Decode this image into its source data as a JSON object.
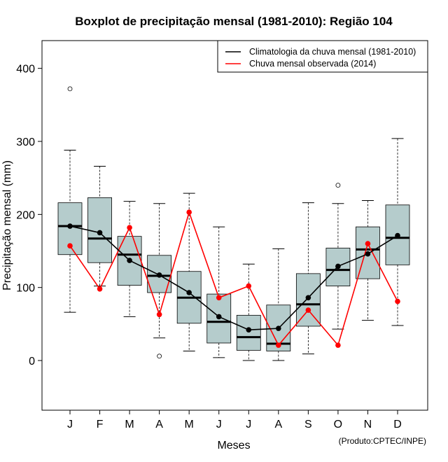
{
  "chart_data": {
    "type": "boxplot",
    "title": "Boxplot de precipitação mensal (1981-2010): Região 104",
    "xlabel": "Meses",
    "ylabel": "Precipitação mensal (mm)",
    "ylim": [
      -68,
      438
    ],
    "yticks": [
      0,
      100,
      200,
      300,
      400
    ],
    "categories": [
      "J",
      "F",
      "M",
      "A",
      "M",
      "J",
      "J",
      "A",
      "S",
      "O",
      "N",
      "D"
    ],
    "boxes": [
      {
        "whisker_low": 66,
        "q1": 145,
        "median": 184,
        "q3": 216,
        "whisker_high": 288,
        "outliers": [
          372
        ]
      },
      {
        "whisker_low": 102,
        "q1": 134,
        "median": 167,
        "q3": 223,
        "whisker_high": 266,
        "outliers": []
      },
      {
        "whisker_low": 60,
        "q1": 103,
        "median": 145,
        "q3": 170,
        "whisker_high": 218,
        "outliers": []
      },
      {
        "whisker_low": 31,
        "q1": 93,
        "median": 116,
        "q3": 144,
        "whisker_high": 215,
        "outliers": [
          6
        ]
      },
      {
        "whisker_low": 13,
        "q1": 51,
        "median": 86,
        "q3": 122,
        "whisker_high": 229,
        "outliers": []
      },
      {
        "whisker_low": 4,
        "q1": 24,
        "median": 53,
        "q3": 91,
        "whisker_high": 183,
        "outliers": []
      },
      {
        "whisker_low": 0,
        "q1": 14,
        "median": 32,
        "q3": 62,
        "whisker_high": 132,
        "outliers": []
      },
      {
        "whisker_low": 0,
        "q1": 13,
        "median": 23,
        "q3": 76,
        "whisker_high": 153,
        "outliers": []
      },
      {
        "whisker_low": 9,
        "q1": 47,
        "median": 77,
        "q3": 119,
        "whisker_high": 216,
        "outliers": []
      },
      {
        "whisker_low": 43,
        "q1": 102,
        "median": 124,
        "q3": 154,
        "whisker_high": 215,
        "outliers": [
          240
        ]
      },
      {
        "whisker_low": 55,
        "q1": 112,
        "median": 152,
        "q3": 183,
        "whisker_high": 219,
        "outliers": []
      },
      {
        "whisker_low": 48,
        "q1": 131,
        "median": 168,
        "q3": 213,
        "whisker_high": 304,
        "outliers": []
      }
    ],
    "series": [
      {
        "name": "Climatologia da chuva mensal (1981-2010)",
        "color": "#000000",
        "values": [
          184,
          175,
          137,
          117,
          93,
          60,
          42,
          44,
          86,
          129,
          146,
          171
        ]
      },
      {
        "name": "Chuva mensal observada (2014)",
        "color": "#ff0000",
        "values": [
          157,
          98,
          182,
          63,
          203,
          86,
          102,
          21,
          69,
          21,
          160,
          81
        ]
      }
    ],
    "legend": "top-right",
    "box_color": "#b5cccc"
  },
  "credit": "(Produto:CPTEC/INPE)"
}
